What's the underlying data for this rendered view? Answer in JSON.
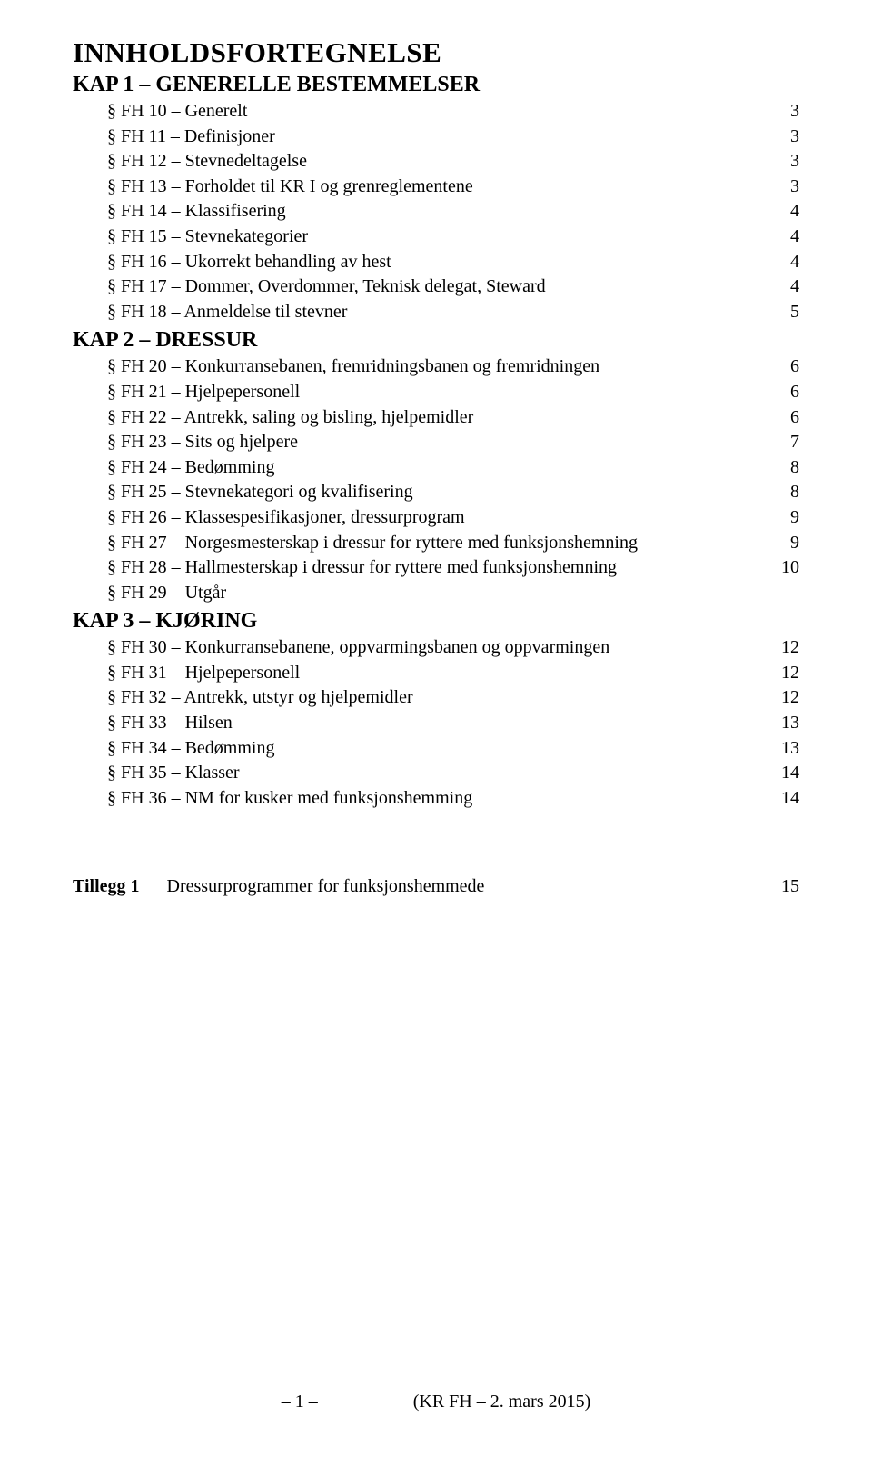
{
  "title": "INNHOLDSFORTEGNELSE",
  "chapters": [
    {
      "heading": "KAP 1 – GENERELLE BESTEMMELSER",
      "entries": [
        {
          "label": "§ FH 10 – Generelt",
          "page": "3"
        },
        {
          "label": "§ FH 11 – Definisjoner",
          "page": "3"
        },
        {
          "label": "§ FH 12 – Stevnedeltagelse",
          "page": "3"
        },
        {
          "label": "§ FH 13 – Forholdet til KR I og grenreglementene",
          "page": "3"
        },
        {
          "label": "§ FH 14 – Klassifisering",
          "page": "4"
        },
        {
          "label": "§ FH 15 – Stevnekategorier",
          "page": "4"
        },
        {
          "label": "§ FH 16 – Ukorrekt behandling av hest",
          "page": "4"
        },
        {
          "label": "§ FH 17 – Dommer, Overdommer, Teknisk delegat, Steward",
          "page": "4"
        },
        {
          "label": "§ FH 18 – Anmeldelse til stevner",
          "page": "5"
        }
      ]
    },
    {
      "heading": "KAP 2 – DRESSUR",
      "entries": [
        {
          "label": "§ FH 20 – Konkurransebanen, fremridningsbanen og fremridningen",
          "page": "6"
        },
        {
          "label": "§ FH 21 – Hjelpepersonell",
          "page": "6"
        },
        {
          "label": "§ FH 22 – Antrekk, saling og bisling, hjelpemidler",
          "page": "6"
        },
        {
          "label": "§ FH 23 – Sits og hjelpere",
          "page": "7"
        },
        {
          "label": "§ FH 24 – Bedømming",
          "page": "8"
        },
        {
          "label": "§ FH 25 – Stevnekategori og kvalifisering",
          "page": "8"
        },
        {
          "label": "§ FH 26 – Klassespesifikasjoner, dressurprogram",
          "page": "9"
        },
        {
          "label": "§ FH 27 – Norgesmesterskap i dressur for ryttere med funksjonshemning",
          "page": "9"
        },
        {
          "label": "§ FH 28 – Hallmesterskap i dressur for ryttere med funksjonshemning",
          "page": "10"
        },
        {
          "label": "§ FH 29 – Utgår",
          "page": null
        }
      ]
    },
    {
      "heading": "KAP 3 – KJØRING",
      "entries": [
        {
          "label": "§ FH 30 – Konkurransebanene, oppvarmingsbanen og oppvarmingen",
          "page": "12"
        },
        {
          "label": "§ FH 31 – Hjelpepersonell",
          "page": "12"
        },
        {
          "label": "§ FH 32 – Antrekk, utstyr og hjelpemidler",
          "page": "12"
        },
        {
          "label": "§ FH 33 – Hilsen",
          "page": "13"
        },
        {
          "label": "§ FH 34 – Bedømming",
          "page": "13"
        },
        {
          "label": "§ FH 35 – Klasser",
          "page": "14"
        },
        {
          "label": "§ FH 36 – NM for kusker med funksjonshemming",
          "page": "14"
        }
      ]
    }
  ],
  "appendix": {
    "prefix": "Tillegg 1",
    "label": "Dressurprogrammer for funksjonshemmede",
    "page": "15"
  },
  "footer": {
    "left": "– 1 –",
    "right": "(KR FH – 2. mars 2015)"
  },
  "colors": {
    "background": "#ffffff",
    "text": "#000000"
  },
  "typography": {
    "family": "Times New Roman",
    "title_size_pt": 23,
    "chapter_size_pt": 18,
    "entry_size_pt": 15,
    "footer_size_pt": 15
  }
}
